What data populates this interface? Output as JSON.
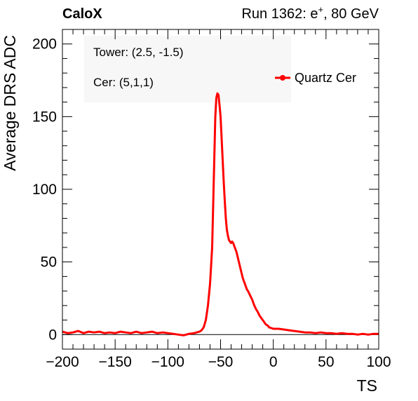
{
  "header": {
    "left": "CaloX",
    "right_main": "Run 1362: e",
    "right_sup": "+",
    "right_tail": ", 80 GeV"
  },
  "info": {
    "tower": "Tower: (2.5, -1.5)",
    "cer": "Cer: (5,1,1)"
  },
  "chart_data": {
    "type": "line",
    "xlabel": "TS",
    "ylabel": "Average DRS ADC",
    "xlim": [
      -200,
      100
    ],
    "ylim": [
      -10,
      210
    ],
    "xticks": [
      -200,
      -150,
      -100,
      -50,
      0,
      50,
      100
    ],
    "xtick_labels": [
      "−200",
      "−150",
      "−100",
      "−50",
      "0",
      "50",
      "100"
    ],
    "yticks": [
      0,
      50,
      100,
      150,
      200
    ],
    "ytick_labels": [
      "0",
      "50",
      "100",
      "150",
      "200"
    ],
    "grid": false,
    "legend": "top-right",
    "colors": {
      "series": "#ff0000",
      "axis": "#000000",
      "baseline": "#000000"
    },
    "series": [
      {
        "name": "Quartz Cer",
        "x": [
          -200,
          -195,
          -190,
          -185,
          -180,
          -175,
          -170,
          -165,
          -160,
          -155,
          -150,
          -145,
          -140,
          -135,
          -130,
          -125,
          -120,
          -115,
          -110,
          -105,
          -100,
          -95,
          -90,
          -85,
          -80,
          -75,
          -70,
          -68,
          -66,
          -64,
          -62,
          -60,
          -58,
          -57,
          -56,
          -55,
          -54,
          -53,
          -52,
          -51,
          -50,
          -49,
          -48,
          -47,
          -46,
          -45,
          -44,
          -43,
          -42,
          -41,
          -40,
          -39,
          -38,
          -37,
          -36,
          -35,
          -34,
          -33,
          -32,
          -31,
          -30,
          -29,
          -28,
          -27,
          -26,
          -25,
          -24,
          -23,
          -22,
          -21,
          -20,
          -19,
          -18,
          -17,
          -16,
          -15,
          -14,
          -13,
          -12,
          -11,
          -10,
          -9,
          -8,
          -7,
          -6,
          -5,
          -4,
          -2,
          0,
          5,
          10,
          15,
          20,
          25,
          30,
          35,
          40,
          45,
          50,
          55,
          60,
          65,
          70,
          75,
          80,
          85,
          90,
          95,
          100
        ],
        "y": [
          2,
          1,
          1.5,
          2.5,
          1,
          2,
          1.5,
          2,
          1,
          1.5,
          1,
          2,
          1.5,
          1,
          2,
          1,
          1.5,
          2,
          1,
          1.5,
          1,
          0.5,
          0,
          -0.5,
          0.5,
          1,
          2,
          3,
          5,
          10,
          20,
          35,
          60,
          90,
          120,
          150,
          163,
          166,
          165,
          158,
          150,
          135,
          120,
          105,
          92,
          80,
          72,
          68,
          65,
          64,
          63,
          64,
          63,
          61,
          59,
          57,
          54,
          51,
          48,
          45,
          42,
          39,
          37,
          35,
          33,
          31,
          30,
          28.5,
          27,
          25.5,
          24,
          22,
          20,
          18.5,
          17,
          16,
          14.5,
          13,
          12,
          11,
          10,
          9,
          8,
          7,
          6.5,
          6,
          5,
          4.5,
          4,
          4,
          3.5,
          3,
          2.5,
          2,
          1.5,
          1.5,
          1,
          1.5,
          1,
          1,
          0.5,
          1,
          0.5,
          0.5,
          0,
          0.5,
          0,
          0.5,
          0.5
        ]
      }
    ]
  }
}
